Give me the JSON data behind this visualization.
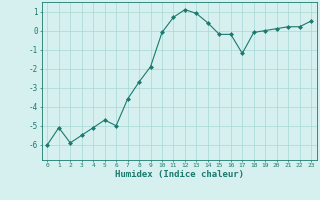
{
  "x": [
    0,
    1,
    2,
    3,
    4,
    5,
    6,
    7,
    8,
    9,
    10,
    11,
    12,
    13,
    14,
    15,
    16,
    17,
    18,
    19,
    20,
    21,
    22,
    23
  ],
  "y": [
    -6.0,
    -5.1,
    -5.9,
    -5.5,
    -5.1,
    -4.7,
    -5.0,
    -3.6,
    -2.7,
    -1.9,
    -0.1,
    0.7,
    1.1,
    0.9,
    0.4,
    -0.2,
    -0.2,
    -1.2,
    -0.1,
    0.0,
    0.1,
    0.2,
    0.2,
    0.5
  ],
  "xlabel": "Humidex (Indice chaleur)",
  "xlim": [
    -0.5,
    23.5
  ],
  "ylim": [
    -6.8,
    1.5
  ],
  "yticks": [
    -6,
    -5,
    -4,
    -3,
    -2,
    -1,
    0,
    1
  ],
  "xticks": [
    0,
    1,
    2,
    3,
    4,
    5,
    6,
    7,
    8,
    9,
    10,
    11,
    12,
    13,
    14,
    15,
    16,
    17,
    18,
    19,
    20,
    21,
    22,
    23
  ],
  "line_color": "#1a7a6e",
  "marker_color": "#1a7a6e",
  "bg_color": "#d6f0ef",
  "grid_color": "#a8d8d4",
  "axis_color": "#1a7a6e",
  "label_color": "#1a7a6e"
}
